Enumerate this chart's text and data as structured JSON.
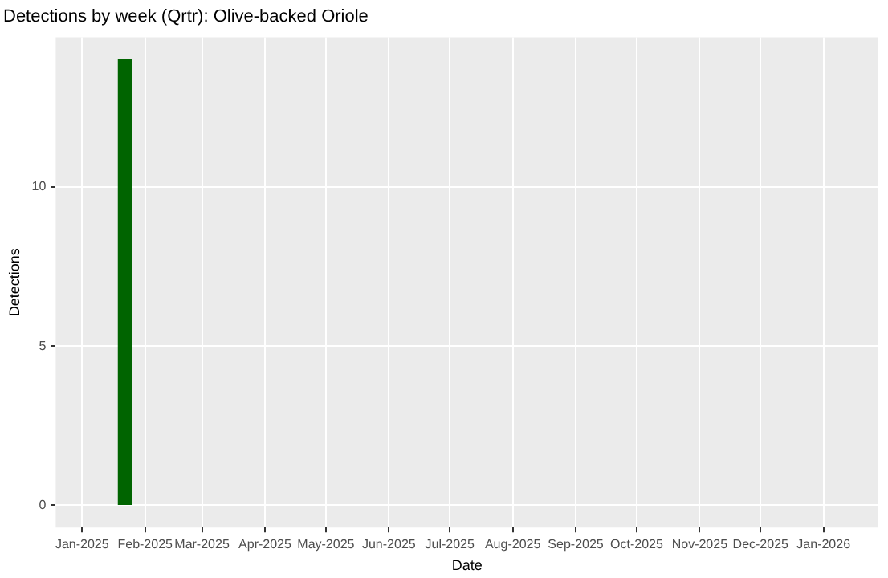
{
  "chart_data": {
    "type": "bar",
    "title": "Detections by week (Qrtr): Olive-backed Oriole",
    "xlabel": "Date",
    "ylabel": "Detections",
    "x": [
      "2025-01-22"
    ],
    "series": [
      {
        "color": "#006400",
        "values": [
          14
        ]
      }
    ],
    "xlim": [
      "2024-12-19",
      "2026-01-28"
    ],
    "xticks": [
      {
        "value": "2025-01-01",
        "label": "Jan-2025"
      },
      {
        "value": "2025-02-01",
        "label": "Feb-2025"
      },
      {
        "value": "2025-03-01",
        "label": "Mar-2025"
      },
      {
        "value": "2025-04-01",
        "label": "Apr-2025"
      },
      {
        "value": "2025-05-01",
        "label": "May-2025"
      },
      {
        "value": "2025-06-01",
        "label": "Jun-2025"
      },
      {
        "value": "2025-07-01",
        "label": "Jul-2025"
      },
      {
        "value": "2025-08-01",
        "label": "Aug-2025"
      },
      {
        "value": "2025-09-01",
        "label": "Sep-2025"
      },
      {
        "value": "2025-10-01",
        "label": "Oct-2025"
      },
      {
        "value": "2025-11-01",
        "label": "Nov-2025"
      },
      {
        "value": "2025-12-01",
        "label": "Dec-2025"
      },
      {
        "value": "2026-01-01",
        "label": "Jan-2026"
      }
    ],
    "ylim": [
      -0.7,
      14.7
    ],
    "yticks": [
      0,
      5,
      10
    ],
    "grid": true
  }
}
